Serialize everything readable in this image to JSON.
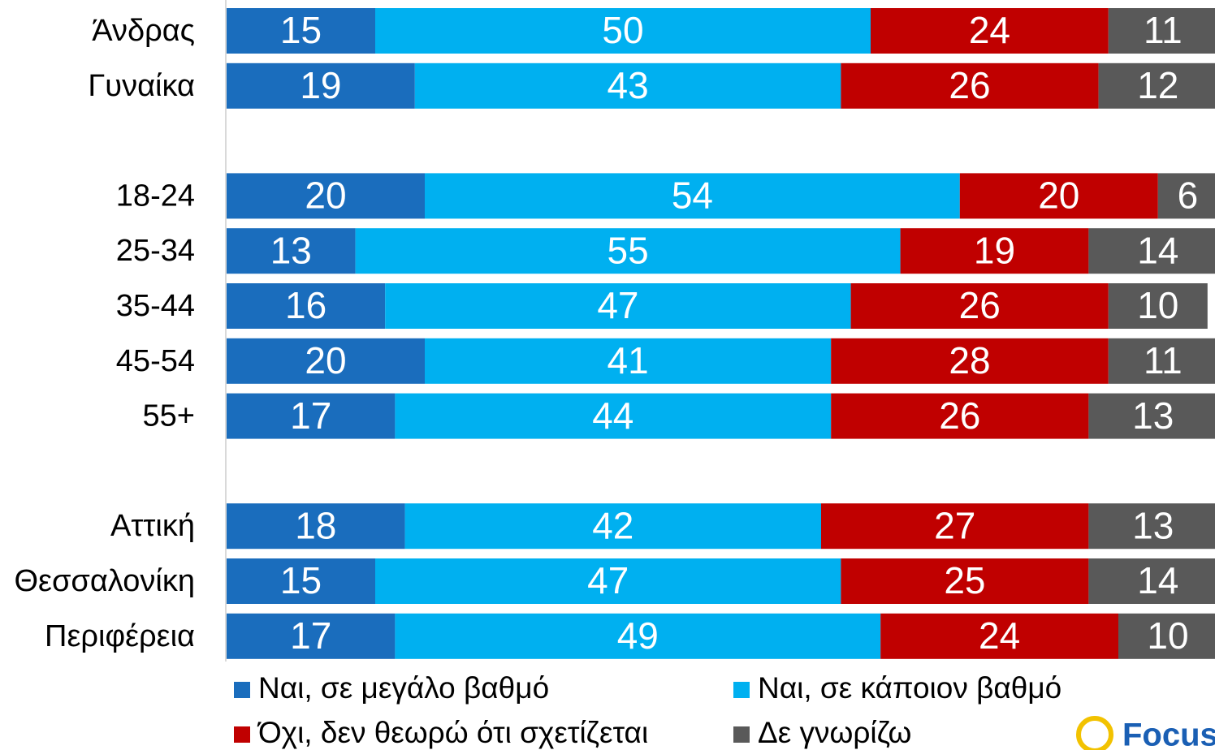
{
  "chart_data": {
    "type": "stacked-bar-horizontal",
    "categories": [
      "Άνδρας",
      "Γυναίκα",
      null,
      "18-24",
      "25-34",
      "35-44",
      "45-54",
      "55+",
      null,
      "Αττική",
      "Θεσσαλονίκη",
      "Περιφέρεια"
    ],
    "series": [
      {
        "name": "Ναι, σε μεγάλο βαθμό",
        "color": "#1a6dbd",
        "values": [
          15,
          19,
          null,
          20,
          13,
          16,
          20,
          17,
          null,
          18,
          15,
          17
        ]
      },
      {
        "name": "Ναι, σε κάποιον βαθμό",
        "color": "#00b0f0",
        "values": [
          50,
          43,
          null,
          54,
          55,
          47,
          41,
          44,
          null,
          42,
          47,
          49
        ]
      },
      {
        "name": "Όχι, δεν θεωρώ ότι σχετίζεται",
        "color": "#c00000",
        "values": [
          24,
          26,
          null,
          20,
          19,
          26,
          28,
          26,
          null,
          27,
          25,
          24
        ]
      },
      {
        "name": "Δε γνωρίζω",
        "color": "#595959",
        "values": [
          11,
          12,
          null,
          6,
          14,
          10,
          11,
          13,
          null,
          13,
          14,
          10
        ]
      }
    ],
    "xlim": [
      0,
      100
    ],
    "logo": "Focus"
  }
}
